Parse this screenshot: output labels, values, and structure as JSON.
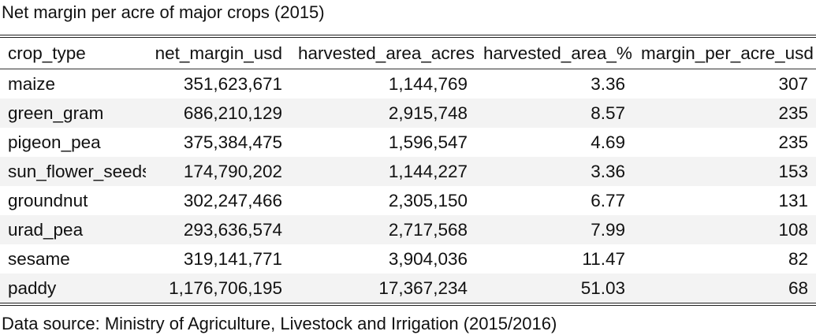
{
  "chart_data": {
    "type": "table",
    "title": "Net margin per acre of major crops (2015)",
    "source": "Data source: Ministry of Agriculture, Livestock and Irrigation (2015/2016)",
    "columns": [
      "crop_type",
      "net_margin_usd",
      "harvested_area_acres",
      "harvested_area_%",
      "margin_per_acre_usd"
    ],
    "rows": [
      [
        "maize",
        "351,623,671",
        "1,144,769",
        "3.36",
        "307"
      ],
      [
        "green_gram",
        "686,210,129",
        "2,915,748",
        "8.57",
        "235"
      ],
      [
        "pigeon_pea",
        "375,384,475",
        "1,596,547",
        "4.69",
        "235"
      ],
      [
        "sun_flower_seeds",
        "174,790,202",
        "1,144,227",
        "3.36",
        "153"
      ],
      [
        "groundnut",
        "302,247,466",
        "2,305,150",
        "6.77",
        "131"
      ],
      [
        "urad_pea",
        "293,636,574",
        "2,717,568",
        "7.99",
        "108"
      ],
      [
        "sesame",
        "319,141,771",
        "3,904,036",
        "11.47",
        "82"
      ],
      [
        "paddy",
        "1,176,706,195",
        "17,367,234",
        "51.03",
        "68"
      ]
    ]
  }
}
